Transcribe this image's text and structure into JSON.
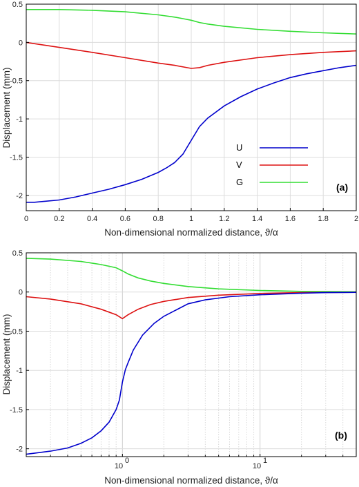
{
  "chart_data": [
    {
      "type": "line",
      "panel_label": "(a)",
      "xlabel": "Non-dimensional normalized distance, ϑ/α",
      "ylabel": "Displacement (mm)",
      "xscale": "linear",
      "xlim": [
        0,
        2
      ],
      "ylim": [
        -2.2,
        0.5
      ],
      "xticks": [
        0,
        0.2,
        0.4,
        0.6,
        0.8,
        1,
        1.2,
        1.4,
        1.6,
        1.8,
        2
      ],
      "xtick_labels": [
        "0",
        "0.2",
        "0.4",
        "0.6",
        "0.8",
        "1",
        "1.2",
        "1.4",
        "1.6",
        "1.8",
        "2"
      ],
      "yticks": [
        0.5,
        0,
        -0.5,
        -1,
        -1.5,
        -2
      ],
      "ytick_labels": [
        "0.5",
        "0",
        "-0.5",
        "-1",
        "-1.5",
        "-2"
      ],
      "grid": true,
      "legend_position": "lower-right",
      "series": [
        {
          "name": "U",
          "color": "#0000cc",
          "x": [
            0,
            0.05,
            0.1,
            0.2,
            0.3,
            0.4,
            0.5,
            0.6,
            0.7,
            0.8,
            0.85,
            0.9,
            0.95,
            1.0,
            1.05,
            1.1,
            1.2,
            1.3,
            1.4,
            1.5,
            1.6,
            1.7,
            1.8,
            1.9,
            2.0
          ],
          "y": [
            -2.09,
            -2.09,
            -2.08,
            -2.06,
            -2.02,
            -1.97,
            -1.92,
            -1.86,
            -1.79,
            -1.7,
            -1.64,
            -1.57,
            -1.46,
            -1.28,
            -1.1,
            -0.99,
            -0.83,
            -0.71,
            -0.61,
            -0.53,
            -0.46,
            -0.41,
            -0.37,
            -0.33,
            -0.3
          ]
        },
        {
          "name": "V",
          "color": "#dd1111",
          "x": [
            0,
            0.2,
            0.4,
            0.6,
            0.8,
            0.9,
            1.0,
            1.05,
            1.1,
            1.2,
            1.4,
            1.6,
            1.8,
            2.0
          ],
          "y": [
            0.0,
            -0.065,
            -0.13,
            -0.2,
            -0.27,
            -0.3,
            -0.34,
            -0.33,
            -0.3,
            -0.26,
            -0.2,
            -0.16,
            -0.13,
            -0.11
          ]
        },
        {
          "name": "G",
          "color": "#33dd33",
          "x": [
            0,
            0.2,
            0.4,
            0.6,
            0.8,
            0.9,
            0.95,
            1.0,
            1.05,
            1.1,
            1.2,
            1.4,
            1.6,
            1.8,
            2.0
          ],
          "y": [
            0.43,
            0.43,
            0.42,
            0.4,
            0.36,
            0.33,
            0.31,
            0.29,
            0.26,
            0.24,
            0.21,
            0.17,
            0.145,
            0.125,
            0.11
          ]
        }
      ]
    },
    {
      "type": "line",
      "panel_label": "(b)",
      "xlabel": "Non-dimensional normalized distance, ϑ/α",
      "ylabel": "Displacement (mm)",
      "xscale": "log",
      "xlim": [
        0.2,
        50
      ],
      "ylim": [
        -2.1,
        0.5
      ],
      "xtick_labels": [
        "10",
        "0",
        "10",
        "1"
      ],
      "yticks": [
        0.5,
        0,
        -0.5,
        -1,
        -1.5,
        -2
      ],
      "ytick_labels": [
        "0.5",
        "0",
        "-0.5",
        "-1",
        "-1.5",
        "-2"
      ],
      "grid": true,
      "series": [
        {
          "name": "U",
          "color": "#0000cc",
          "x": [
            0.2,
            0.3,
            0.4,
            0.5,
            0.6,
            0.7,
            0.8,
            0.9,
            0.95,
            1.0,
            1.05,
            1.1,
            1.2,
            1.4,
            1.7,
            2,
            3,
            4,
            6,
            10,
            20,
            30,
            50
          ],
          "y": [
            -2.07,
            -2.03,
            -1.99,
            -1.93,
            -1.86,
            -1.77,
            -1.66,
            -1.5,
            -1.38,
            -1.15,
            -0.99,
            -0.9,
            -0.74,
            -0.55,
            -0.4,
            -0.31,
            -0.15,
            -0.1,
            -0.06,
            -0.035,
            -0.015,
            -0.008,
            -0.004
          ]
        },
        {
          "name": "V",
          "color": "#dd1111",
          "x": [
            0.2,
            0.3,
            0.5,
            0.7,
            0.9,
            1.0,
            1.1,
            1.3,
            1.6,
            2,
            3,
            5,
            10,
            20,
            50
          ],
          "y": [
            -0.06,
            -0.09,
            -0.15,
            -0.22,
            -0.29,
            -0.34,
            -0.29,
            -0.22,
            -0.16,
            -0.12,
            -0.07,
            -0.04,
            -0.018,
            -0.008,
            -0.003
          ]
        },
        {
          "name": "G",
          "color": "#33dd33",
          "x": [
            0.2,
            0.3,
            0.5,
            0.7,
            0.9,
            1.0,
            1.1,
            1.3,
            1.6,
            2,
            3,
            5,
            10,
            20,
            50
          ],
          "y": [
            0.43,
            0.42,
            0.39,
            0.35,
            0.31,
            0.27,
            0.23,
            0.18,
            0.14,
            0.11,
            0.07,
            0.04,
            0.02,
            0.008,
            0.003
          ]
        }
      ]
    }
  ]
}
